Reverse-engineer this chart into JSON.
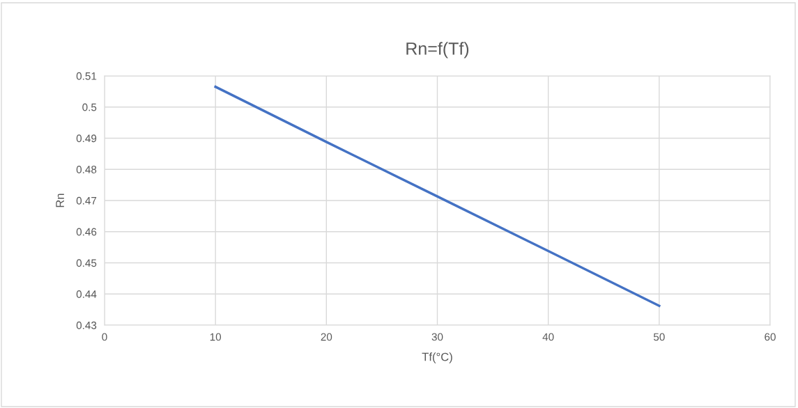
{
  "chart_data": {
    "type": "line",
    "title": "Rn=f(Tf)",
    "xlabel": "Tf(°C)",
    "ylabel": "Rn",
    "x": [
      10,
      20,
      30,
      40,
      50
    ],
    "series": [
      {
        "color": "#4472c4",
        "values": [
          0.5065,
          0.4888,
          0.4713,
          0.4538,
          0.4362
        ]
      }
    ],
    "xlim": [
      0,
      60
    ],
    "xticks": [
      0,
      10,
      20,
      30,
      40,
      50,
      60
    ],
    "ylim": [
      0.43,
      0.51
    ],
    "yticks": [
      0.43,
      0.44,
      0.45,
      0.46,
      0.47,
      0.48,
      0.49,
      0.5,
      0.51
    ],
    "grid": true,
    "legend": false,
    "marker": "none",
    "line_style": "solid"
  }
}
